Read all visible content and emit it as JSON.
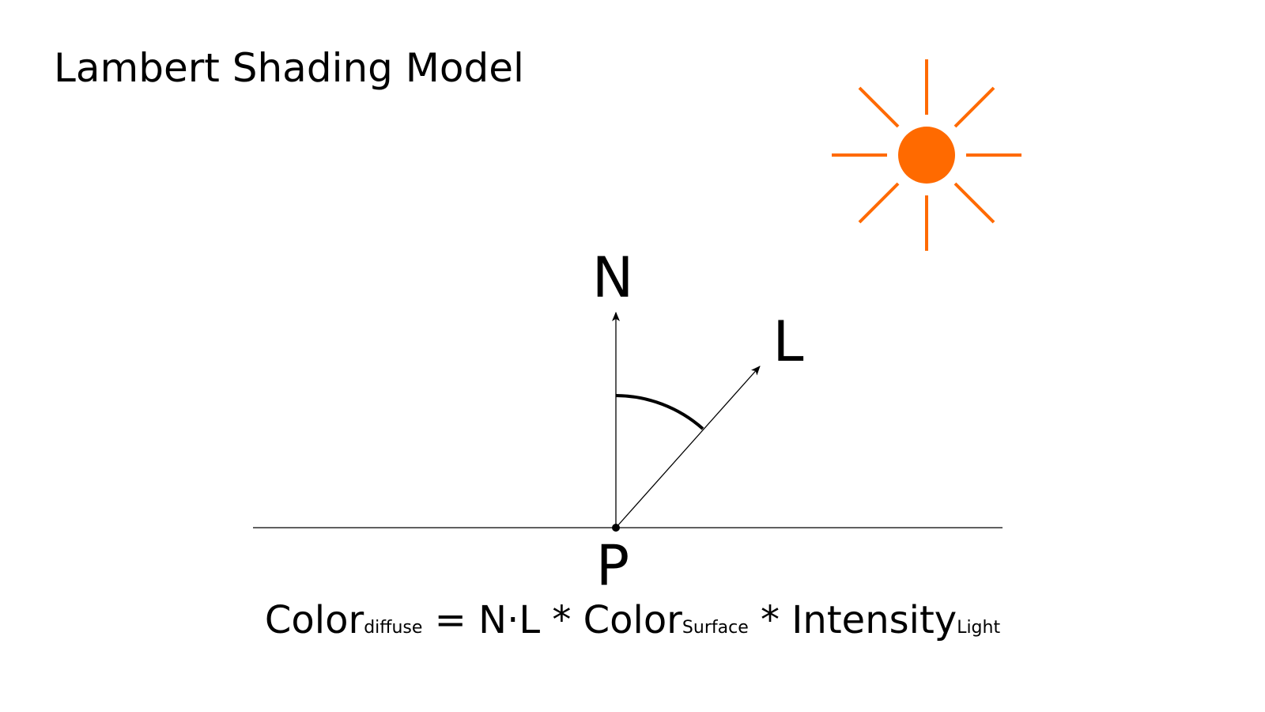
{
  "title": "Lambert Shading Model",
  "labels": {
    "normal": "N",
    "light": "L",
    "point": "P"
  },
  "formula": {
    "term1": "Color",
    "term1_sub": "diffuse",
    "op_eq": "=",
    "term2": "N·L",
    "op_mul1": "*",
    "term3": "Color",
    "term3_sub": "Surface",
    "op_mul2": "*",
    "term4": "Intensity",
    "term4_sub": "Light"
  },
  "colors": {
    "sun": "#ff6a00",
    "ink": "#000000"
  },
  "icons": {
    "sun": "sun-icon"
  }
}
